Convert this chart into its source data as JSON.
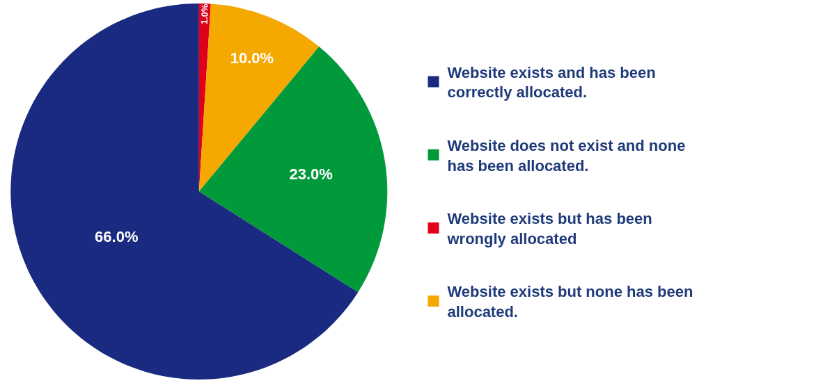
{
  "chart_data": {
    "type": "pie",
    "categories": [
      "Website exists and has been correctly allocated.",
      "Website does not exist and none has been allocated.",
      "Website exists but has been wrongly allocated",
      "Website exists but none has been allocated."
    ],
    "values": [
      66.0,
      23.0,
      1.0,
      10.0
    ],
    "value_labels": [
      "66.0%",
      "23.0%",
      "1.0%",
      "10.0%"
    ],
    "colors": [
      "#1a2a80",
      "#009a3a",
      "#e0001b",
      "#f5a800"
    ],
    "legend": "right"
  }
}
